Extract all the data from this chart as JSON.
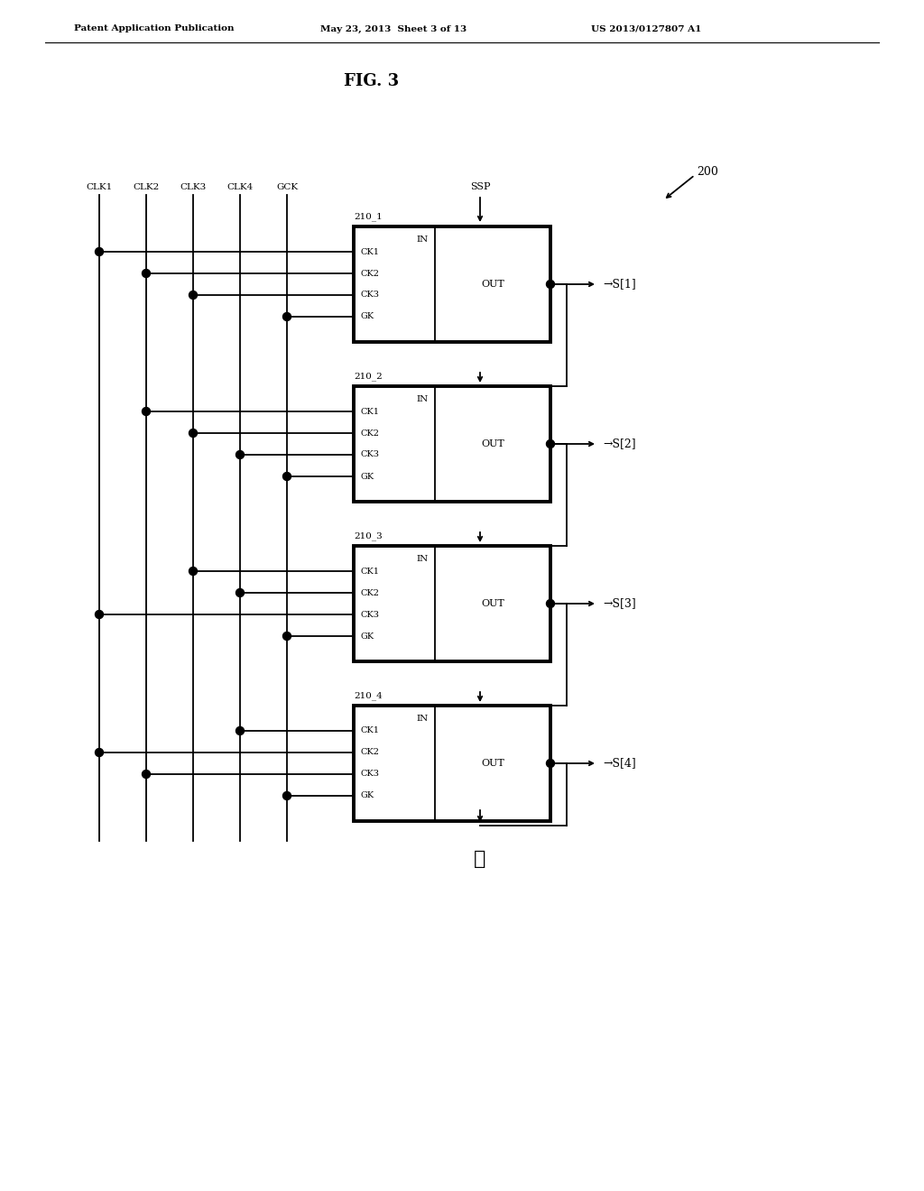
{
  "title": "FIG. 3",
  "header_left": "Patent Application Publication",
  "header_mid": "May 23, 2013  Sheet 3 of 13",
  "header_right": "US 2013/0127807 A1",
  "fig_label": "200",
  "clk_labels": [
    "CLK1",
    "CLK2",
    "CLK3",
    "CLK4",
    "GCK"
  ],
  "ssp_label": "SSP",
  "block_labels": [
    "210_1",
    "210_2",
    "210_3",
    "210_4"
  ],
  "input_labels": [
    "CK1",
    "CK2",
    "CK3",
    "GK"
  ],
  "in_label": "IN",
  "out_label": "OUT",
  "output_signals": [
    "S[1]",
    "S[2]",
    "S[3]",
    "S[4]"
  ],
  "bg_color": "#ffffff",
  "line_color": "#000000",
  "text_color": "#000000",
  "lw": 1.3,
  "lw_thick": 2.8
}
